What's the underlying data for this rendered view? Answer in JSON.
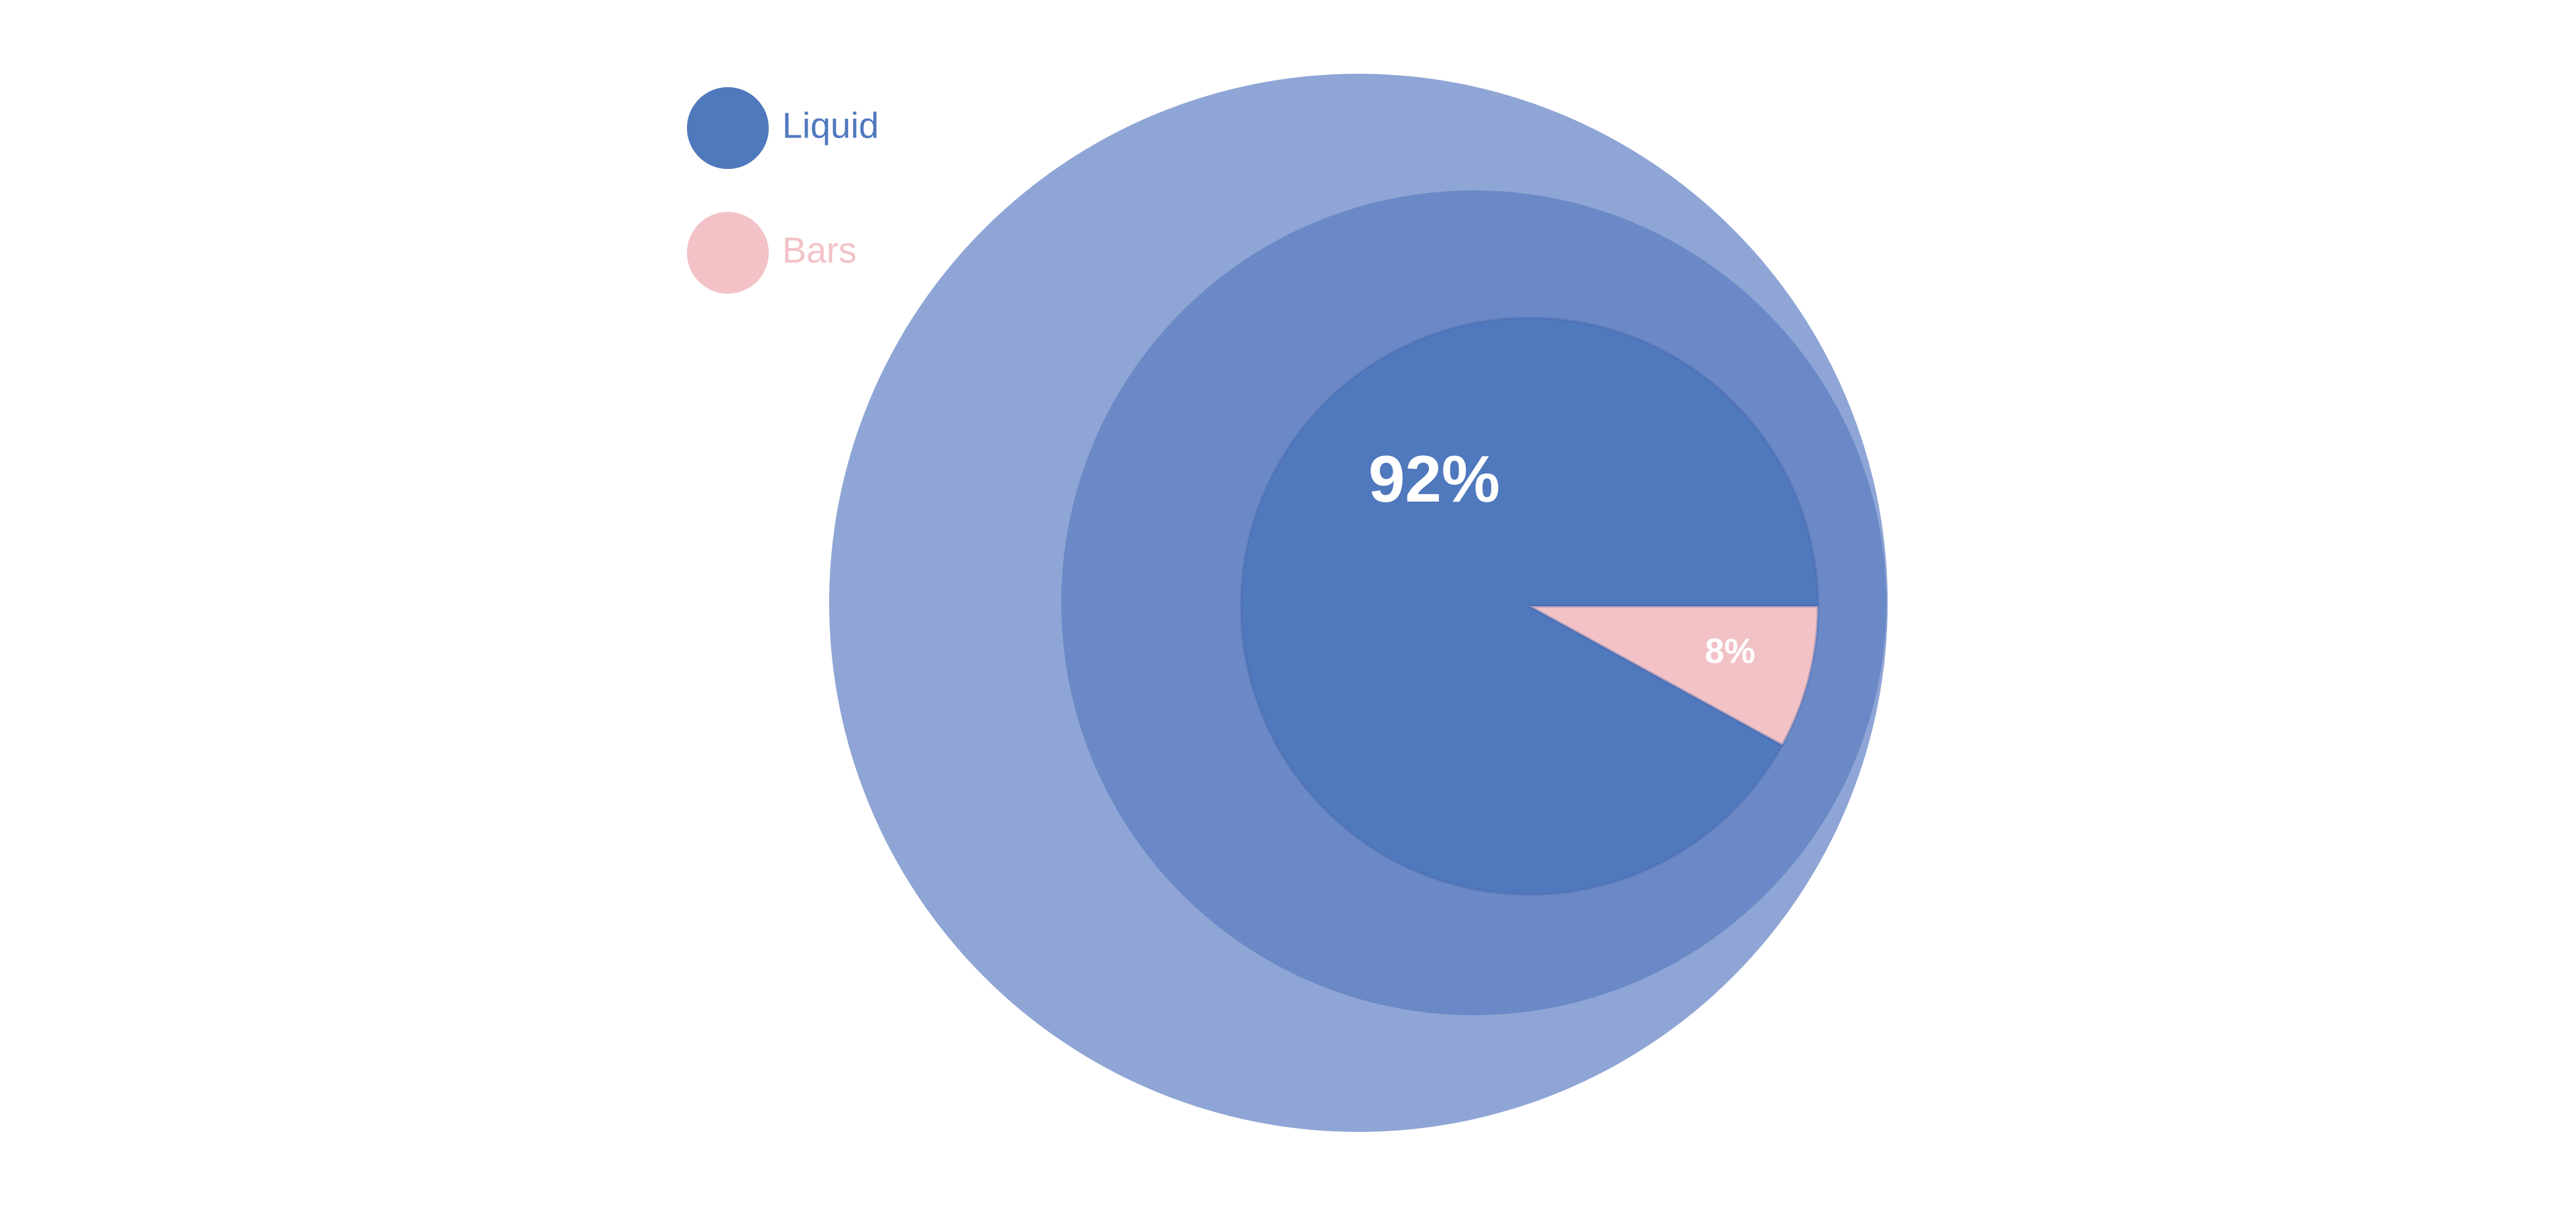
{
  "chart_data": {
    "type": "pie",
    "categories": [
      "Liquid",
      "Bars"
    ],
    "values": [
      92,
      8
    ],
    "value_labels": [
      "92%",
      "8%"
    ],
    "colors": [
      "#4f78bd",
      "#f2c2c6"
    ],
    "legend": "top-left"
  }
}
